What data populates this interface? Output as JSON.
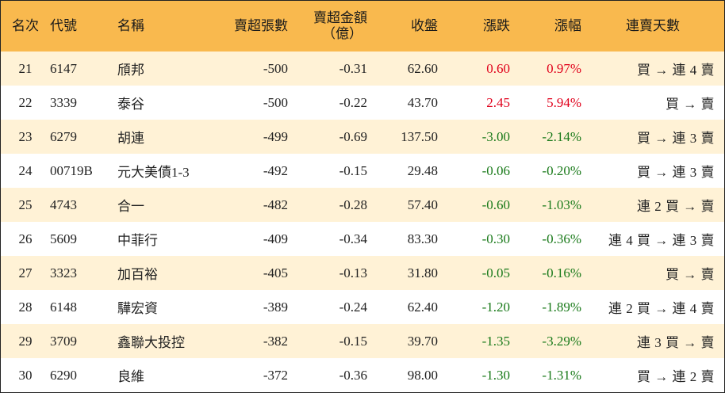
{
  "header": {
    "rank": "名次",
    "code": "代號",
    "name": "名稱",
    "oversold_lots": "賣超張數",
    "oversold_amount_line1": "賣超金額",
    "oversold_amount_line2": "（億）",
    "close": "收盤",
    "change": "漲跌",
    "change_pct": "漲幅",
    "consecutive_days": "連賣天數"
  },
  "rows": [
    {
      "rank": "21",
      "code": "6147",
      "name": "頎邦",
      "lots": "-500",
      "amount": "-0.31",
      "close": "62.60",
      "change": "0.60",
      "pct": "0.97%",
      "dir": "up",
      "trend": "買 → 連 4 賣"
    },
    {
      "rank": "22",
      "code": "3339",
      "name": "泰谷",
      "lots": "-500",
      "amount": "-0.22",
      "close": "43.70",
      "change": "2.45",
      "pct": "5.94%",
      "dir": "up",
      "trend": "買 → 賣"
    },
    {
      "rank": "23",
      "code": "6279",
      "name": "胡連",
      "lots": "-499",
      "amount": "-0.69",
      "close": "137.50",
      "change": "-3.00",
      "pct": "-2.14%",
      "dir": "down",
      "trend": "買 → 連 3 賣"
    },
    {
      "rank": "24",
      "code": "00719B",
      "name": "元大美債1-3",
      "lots": "-492",
      "amount": "-0.15",
      "close": "29.48",
      "change": "-0.06",
      "pct": "-0.20%",
      "dir": "down",
      "trend": "買 → 連 3 賣"
    },
    {
      "rank": "25",
      "code": "4743",
      "name": "合一",
      "lots": "-482",
      "amount": "-0.28",
      "close": "57.40",
      "change": "-0.60",
      "pct": "-1.03%",
      "dir": "down",
      "trend": "連 2 買 → 賣"
    },
    {
      "rank": "26",
      "code": "5609",
      "name": "中菲行",
      "lots": "-409",
      "amount": "-0.34",
      "close": "83.30",
      "change": "-0.30",
      "pct": "-0.36%",
      "dir": "down",
      "trend": "連 4 買 → 連 3 賣"
    },
    {
      "rank": "27",
      "code": "3323",
      "name": "加百裕",
      "lots": "-405",
      "amount": "-0.13",
      "close": "31.80",
      "change": "-0.05",
      "pct": "-0.16%",
      "dir": "down",
      "trend": "買 → 賣"
    },
    {
      "rank": "28",
      "code": "6148",
      "name": "驊宏資",
      "lots": "-389",
      "amount": "-0.24",
      "close": "62.40",
      "change": "-1.20",
      "pct": "-1.89%",
      "dir": "down",
      "trend": "連 2 買 → 連 4 賣"
    },
    {
      "rank": "29",
      "code": "3709",
      "name": "鑫聯大投控",
      "lots": "-382",
      "amount": "-0.15",
      "close": "39.70",
      "change": "-1.35",
      "pct": "-3.29%",
      "dir": "down",
      "trend": "連 3 買 → 賣"
    },
    {
      "rank": "30",
      "code": "6290",
      "name": "良維",
      "lots": "-372",
      "amount": "-0.36",
      "close": "98.00",
      "change": "-1.30",
      "pct": "-1.31%",
      "dir": "down",
      "trend": "買 → 連 2 賣"
    }
  ],
  "colors": {
    "header_bg": "#f9b94e",
    "odd_row_bg": "#fff2d6",
    "up": "#e0001b",
    "down": "#1a7a1a"
  }
}
